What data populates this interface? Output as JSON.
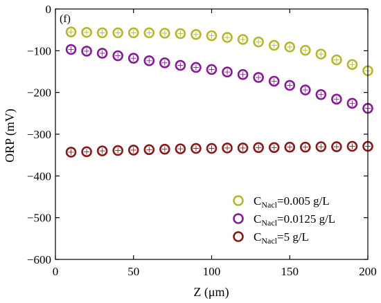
{
  "chart_data": {
    "type": "scatter",
    "panel_label": "(f)",
    "xlabel": "Z (μm)",
    "ylabel": "ORP (mV)",
    "xlim": [
      0,
      200
    ],
    "ylim": [
      -600,
      0
    ],
    "x_ticks": [
      0,
      50,
      100,
      150,
      200
    ],
    "y_ticks": [
      0,
      -100,
      -200,
      -300,
      -400,
      -500,
      -600
    ],
    "legend_placement": "bottom-right",
    "x": [
      10,
      20,
      30,
      40,
      50,
      60,
      70,
      80,
      90,
      100,
      110,
      120,
      130,
      140,
      150,
      160,
      170,
      180,
      190,
      200
    ],
    "series": [
      {
        "name_main": "C",
        "name_sub": "Nacl",
        "name_rest": "=0.005 g/L",
        "color": "#b5b82a",
        "values": [
          -55,
          -56,
          -57,
          -57,
          -57,
          -57,
          -58,
          -59,
          -61,
          -64,
          -68,
          -73,
          -79,
          -87,
          -91,
          -99,
          -108,
          -122,
          -133,
          -148
        ]
      },
      {
        "name_main": "C",
        "name_sub": "Nacl",
        "name_rest": "=0.0125 g/L",
        "color": "#8b1a9b",
        "values": [
          -97,
          -101,
          -106,
          -112,
          -118,
          -124,
          -129,
          -135,
          -140,
          -145,
          -151,
          -157,
          -164,
          -173,
          -183,
          -194,
          -205,
          -216,
          -226,
          -238
        ]
      },
      {
        "name_main": "C",
        "name_sub": "Nacl",
        "name_rest": "=5 g/L",
        "color": "#8b1a1a",
        "values": [
          -343,
          -342,
          -340,
          -339,
          -338,
          -337,
          -336,
          -335,
          -334,
          -334,
          -333,
          -333,
          -332,
          -332,
          -331,
          -331,
          -330,
          -330,
          -329,
          -329
        ]
      }
    ]
  }
}
